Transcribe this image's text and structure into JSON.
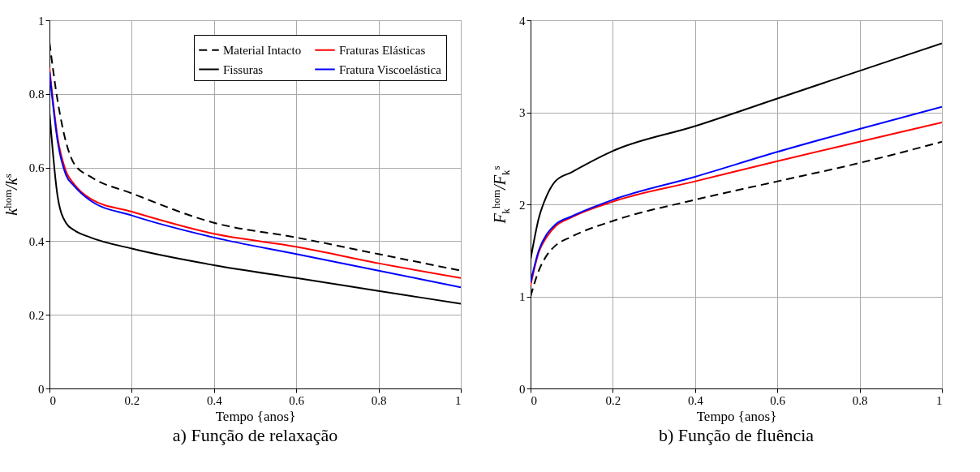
{
  "chart_data": [
    {
      "type": "line",
      "title": "a) Função de relaxação",
      "xlabel": "Tempo {anos}",
      "ylabel": "k$^{hom}$/k$^{s}$",
      "x": [
        0,
        0.02,
        0.04,
        0.06,
        0.1,
        0.2,
        0.4,
        0.6,
        0.8,
        1
      ],
      "series": [
        {
          "name": "Material Intacto",
          "color": "#000000",
          "line_style": "dashed",
          "values": [
            0.94,
            0.78,
            0.67,
            0.61,
            0.575,
            0.53,
            0.45,
            0.41,
            0.365,
            0.32
          ]
        },
        {
          "name": "Fissuras",
          "color": "#000000",
          "line_style": "solid",
          "values": [
            0.75,
            0.52,
            0.45,
            0.43,
            0.41,
            0.38,
            0.335,
            0.3,
            0.265,
            0.23
          ]
        },
        {
          "name": "Fraturas Elásticas",
          "color": "#ff0000",
          "line_style": "solid",
          "values": [
            0.87,
            0.68,
            0.59,
            0.555,
            0.515,
            0.48,
            0.42,
            0.385,
            0.34,
            0.3
          ]
        },
        {
          "name": "Fratura Viscoelástica",
          "color": "#0000ff",
          "line_style": "solid",
          "values": [
            0.86,
            0.67,
            0.58,
            0.55,
            0.51,
            0.47,
            0.41,
            0.365,
            0.32,
            0.275
          ]
        }
      ],
      "xlim": [
        0,
        1
      ],
      "xticks": [
        0,
        0.2,
        0.4,
        0.6,
        0.8,
        1
      ],
      "ylim": [
        0,
        1
      ],
      "yticks": [
        0,
        0.2,
        0.4,
        0.6,
        0.8,
        1
      ],
      "grid": true,
      "legend": "top right"
    },
    {
      "type": "line",
      "title": "b) Função de fluência",
      "xlabel": "Tempo {anos}",
      "ylabel": "F$_{k}$$^{hom}$/F$_{k}$$^{s}$",
      "x": [
        0,
        0.02,
        0.04,
        0.06,
        0.1,
        0.2,
        0.4,
        0.6,
        0.8,
        1
      ],
      "series": [
        {
          "color": "#000000",
          "line_style": "dashed",
          "values": [
            1.0,
            1.28,
            1.45,
            1.55,
            1.65,
            1.82,
            2.05,
            2.25,
            2.45,
            2.68
          ]
        },
        {
          "color": "#000000",
          "line_style": "solid",
          "values": [
            1.4,
            1.85,
            2.1,
            2.25,
            2.35,
            2.58,
            2.85,
            3.15,
            3.45,
            3.75
          ]
        },
        {
          "color": "#ff0000",
          "line_style": "solid",
          "values": [
            1.12,
            1.48,
            1.65,
            1.76,
            1.86,
            2.03,
            2.25,
            2.47,
            2.68,
            2.89
          ]
        },
        {
          "color": "#0000ff",
          "line_style": "solid",
          "values": [
            1.15,
            1.5,
            1.68,
            1.78,
            1.87,
            2.05,
            2.3,
            2.57,
            2.82,
            3.06
          ]
        }
      ],
      "xlim": [
        0,
        1
      ],
      "xticks": [
        0,
        0.2,
        0.4,
        0.6,
        0.8,
        1
      ],
      "ylim": [
        0,
        4
      ],
      "yticks": [
        0,
        1,
        2,
        3,
        4
      ],
      "grid": true
    }
  ]
}
